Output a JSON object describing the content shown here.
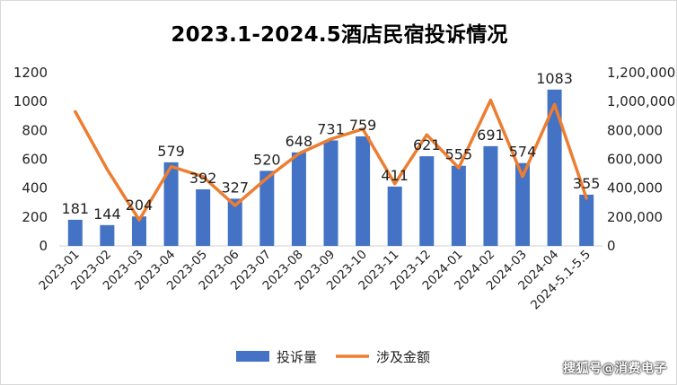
{
  "chart_data": {
    "type": "bar",
    "title": "2023.1-2024.5酒店民宿投诉情况",
    "categories": [
      "2023-01",
      "2023-02",
      "2023-03",
      "2023-04",
      "2023-05",
      "2023-06",
      "2023-07",
      "2023-08",
      "2023-09",
      "2023-10",
      "2023-11",
      "2023-12",
      "2024-01",
      "2024-02",
      "2024-03",
      "2024-04",
      "2024-5.1-5.5"
    ],
    "series": [
      {
        "name": "投诉量",
        "type": "bar",
        "axis": "left",
        "color": "#4472c4",
        "values": [
          181,
          144,
          204,
          579,
          392,
          327,
          520,
          648,
          731,
          759,
          411,
          621,
          555,
          691,
          574,
          1083,
          355
        ]
      },
      {
        "name": "涉及金额",
        "type": "line",
        "axis": "right",
        "color": "#ed7d31",
        "values": [
          930000,
          530000,
          180000,
          550000,
          480000,
          280000,
          470000,
          640000,
          740000,
          810000,
          430000,
          770000,
          540000,
          1010000,
          480000,
          980000,
          330000
        ]
      }
    ],
    "ylim_left": [
      0,
      1200
    ],
    "yticks_left": [
      "0",
      "200",
      "400",
      "600",
      "800",
      "1000",
      "1200"
    ],
    "ylim_right": [
      0,
      1200000
    ],
    "yticks_right": [
      "0",
      "200,000",
      "400,000",
      "600,000",
      "800,000",
      "1,000,000",
      "1,200,000"
    ],
    "grid": false,
    "legend_position": "bottom"
  },
  "watermark": "搜狐号@消费电子"
}
